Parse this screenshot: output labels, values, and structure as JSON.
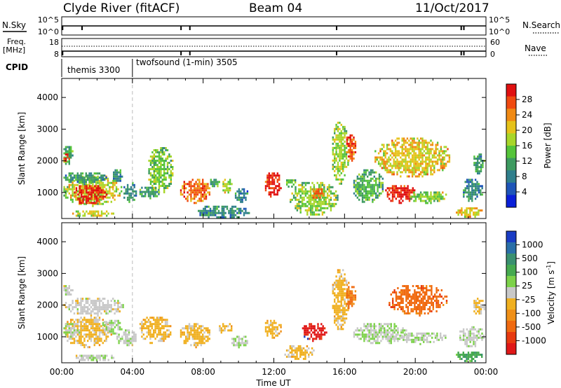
{
  "header": {
    "title": "Clyde River (fitACF)",
    "beam": "Beam 04",
    "date": "11/Oct/2017"
  },
  "top_panels": {
    "nsky_label": "N.Sky",
    "nsky_ticks": [
      "10^5",
      "10^0"
    ],
    "nsearch_label": "N.Search",
    "nsearch_ticks": [
      "10^5",
      "10^0"
    ],
    "freq_label": "Freq.",
    "freq_unit": "[MHz]",
    "freq_ticks": [
      "18",
      "8"
    ],
    "nave_label": "Nave",
    "nave_ticks": [
      "60",
      "0"
    ],
    "cpid_label": "CPID",
    "cpid_segments": [
      {
        "label": "themis 3300",
        "start_hour": 0,
        "end_hour": 4.0
      },
      {
        "label": "twofsound (1-min) 3505",
        "start_hour": 4.0,
        "end_hour": 24
      }
    ]
  },
  "colorbars": {
    "power": {
      "label": "Power [dB]",
      "ticks": [
        "28",
        "24",
        "20",
        "16",
        "12",
        "8",
        "4"
      ],
      "colors": [
        "#0a1fd8",
        "#1e55b8",
        "#2f7f8c",
        "#3d9a60",
        "#55c43a",
        "#a8d62a",
        "#e6c21a",
        "#f08a14",
        "#f04a10",
        "#e01010"
      ]
    },
    "velocity": {
      "label": "Velocity [m s",
      "label_exp": "-1",
      "label_close": "]",
      "ticks": [
        "1000",
        "500",
        "100",
        "25",
        "-25",
        "-100",
        "-500",
        "-1000"
      ],
      "colors": [
        "#1a3cc4",
        "#2a6fa8",
        "#3a9070",
        "#46aa50",
        "#7dd24a",
        "#c8c8c8",
        "#f0b020",
        "#f09018",
        "#f06a10",
        "#e83a10",
        "#e01818"
      ]
    }
  },
  "chart_data": [
    {
      "type": "heatmap",
      "name": "power",
      "ylabel": "Slant Range [km]",
      "yticks": [
        1000,
        2000,
        3000,
        4000
      ],
      "ylim": [
        180,
        4600
      ],
      "xlim": [
        0,
        24
      ],
      "xticks": [
        "00:00",
        "04:00",
        "08:00",
        "12:00",
        "16:00",
        "20:00",
        "00:00"
      ],
      "scale_range": [
        0,
        30
      ],
      "blobs": [
        {
          "t0": 0.0,
          "t1": 0.6,
          "r0": 1900,
          "r1": 2600,
          "v": 12
        },
        {
          "t0": 0.0,
          "t1": 0.4,
          "r0": 2000,
          "r1": 2300,
          "v": 28
        },
        {
          "t0": 0.0,
          "t1": 3.4,
          "r0": 600,
          "r1": 1600,
          "v": 17
        },
        {
          "t0": 0.5,
          "t1": 2.5,
          "r0": 650,
          "r1": 1300,
          "v": 28
        },
        {
          "t0": 0.0,
          "t1": 2.5,
          "r0": 1300,
          "r1": 1700,
          "v": 10
        },
        {
          "t0": 2.8,
          "t1": 3.4,
          "r0": 1300,
          "r1": 1800,
          "v": 9
        },
        {
          "t0": 0.5,
          "t1": 3.0,
          "r0": 250,
          "r1": 500,
          "v": 18
        },
        {
          "t0": 3.4,
          "t1": 4.2,
          "r0": 700,
          "r1": 1400,
          "v": 9
        },
        {
          "t0": 4.3,
          "t1": 5.5,
          "r0": 850,
          "r1": 1250,
          "v": 10
        },
        {
          "t0": 4.8,
          "t1": 6.3,
          "r0": 1000,
          "r1": 2500,
          "v": 14
        },
        {
          "t0": 6.6,
          "t1": 8.4,
          "r0": 700,
          "r1": 1500,
          "v": 24
        },
        {
          "t0": 8.3,
          "t1": 8.9,
          "r0": 1200,
          "r1": 1500,
          "v": 10
        },
        {
          "t0": 9.0,
          "t1": 9.6,
          "r0": 1000,
          "r1": 1500,
          "v": 17
        },
        {
          "t0": 9.7,
          "t1": 10.6,
          "r0": 700,
          "r1": 1200,
          "v": 8
        },
        {
          "t0": 7.6,
          "t1": 10.6,
          "r0": 200,
          "r1": 650,
          "v": 9
        },
        {
          "t0": 11.4,
          "t1": 12.4,
          "r0": 850,
          "r1": 1700,
          "v": 28
        },
        {
          "t0": 12.6,
          "t1": 13.2,
          "r0": 1200,
          "r1": 1550,
          "v": 12
        },
        {
          "t0": 12.8,
          "t1": 15.6,
          "r0": 300,
          "r1": 1400,
          "v": 15
        },
        {
          "t0": 14.0,
          "t1": 14.8,
          "r0": 800,
          "r1": 1200,
          "v": 25
        },
        {
          "t0": 15.2,
          "t1": 16.2,
          "r0": 1300,
          "r1": 3300,
          "v": 16
        },
        {
          "t0": 16.0,
          "t1": 16.6,
          "r0": 2000,
          "r1": 2900,
          "v": 25
        },
        {
          "t0": 16.4,
          "t1": 18.2,
          "r0": 700,
          "r1": 1800,
          "v": 12
        },
        {
          "t0": 17.6,
          "t1": 22.0,
          "r0": 1500,
          "r1": 2800,
          "v": 19
        },
        {
          "t0": 18.2,
          "t1": 20.0,
          "r0": 700,
          "r1": 1300,
          "v": 28
        },
        {
          "t0": 19.6,
          "t1": 21.8,
          "r0": 700,
          "r1": 1100,
          "v": 15
        },
        {
          "t0": 22.6,
          "t1": 23.8,
          "r0": 700,
          "r1": 1500,
          "v": 9
        },
        {
          "t0": 22.2,
          "t1": 23.8,
          "r0": 250,
          "r1": 600,
          "v": 19
        },
        {
          "t0": 23.2,
          "t1": 23.9,
          "r0": 1600,
          "r1": 2300,
          "v": 10
        }
      ]
    },
    {
      "type": "heatmap",
      "name": "velocity",
      "ylabel": "Slant Range [km]",
      "yticks": [
        1000,
        2000,
        3000,
        4000
      ],
      "ylim": [
        180,
        4600
      ],
      "xlim": [
        0,
        24
      ],
      "xticks": [
        "00:00",
        "04:00",
        "08:00",
        "12:00",
        "16:00",
        "20:00",
        "00:00"
      ],
      "scale_range": [
        -1000,
        1000
      ],
      "blobs": [
        {
          "t0": 0.0,
          "t1": 3.6,
          "r0": 1700,
          "r1": 2300,
          "v": 0
        },
        {
          "t0": 0.0,
          "t1": 0.6,
          "r0": 2300,
          "r1": 2700,
          "v": 40
        },
        {
          "t0": 0.0,
          "t1": 2.8,
          "r0": 700,
          "r1": 1700,
          "v": -140
        },
        {
          "t0": 0.0,
          "t1": 1.0,
          "r0": 1000,
          "r1": 1500,
          "v": 80
        },
        {
          "t0": 2.2,
          "t1": 3.4,
          "r0": 1100,
          "r1": 1600,
          "v": 70
        },
        {
          "t0": 3.0,
          "t1": 4.2,
          "r0": 700,
          "r1": 1300,
          "v": 60
        },
        {
          "t0": 0.6,
          "t1": 3.0,
          "r0": 250,
          "r1": 500,
          "v": 70
        },
        {
          "t0": 4.3,
          "t1": 6.2,
          "r0": 800,
          "r1": 1700,
          "v": -150
        },
        {
          "t0": 6.6,
          "t1": 8.4,
          "r0": 700,
          "r1": 1500,
          "v": -150
        },
        {
          "t0": 8.8,
          "t1": 9.6,
          "r0": 1100,
          "r1": 1500,
          "v": -140
        },
        {
          "t0": 9.5,
          "t1": 10.5,
          "r0": 700,
          "r1": 1100,
          "v": 60
        },
        {
          "t0": 11.4,
          "t1": 12.4,
          "r0": 1000,
          "r1": 1600,
          "v": -150
        },
        {
          "t0": 12.5,
          "t1": 14.3,
          "r0": 300,
          "r1": 800,
          "v": -160
        },
        {
          "t0": 13.5,
          "t1": 15.0,
          "r0": 900,
          "r1": 1500,
          "v": -900
        },
        {
          "t0": 15.2,
          "t1": 16.2,
          "r0": 1200,
          "r1": 3200,
          "v": -160
        },
        {
          "t0": 16.0,
          "t1": 16.6,
          "r0": 1900,
          "r1": 2800,
          "v": -500
        },
        {
          "t0": 16.4,
          "t1": 19.5,
          "r0": 800,
          "r1": 1500,
          "v": 70
        },
        {
          "t0": 18.4,
          "t1": 21.8,
          "r0": 1700,
          "r1": 2700,
          "v": -550
        },
        {
          "t0": 19.0,
          "t1": 21.8,
          "r0": 800,
          "r1": 1200,
          "v": 70
        },
        {
          "t0": 22.4,
          "t1": 23.9,
          "r0": 700,
          "r1": 1400,
          "v": 60
        },
        {
          "t0": 22.2,
          "t1": 23.9,
          "r0": 250,
          "r1": 600,
          "v": 400
        },
        {
          "t0": 23.2,
          "t1": 23.9,
          "r0": 1700,
          "r1": 2300,
          "v": -140
        }
      ]
    }
  ],
  "xaxis_label": "Time UT"
}
